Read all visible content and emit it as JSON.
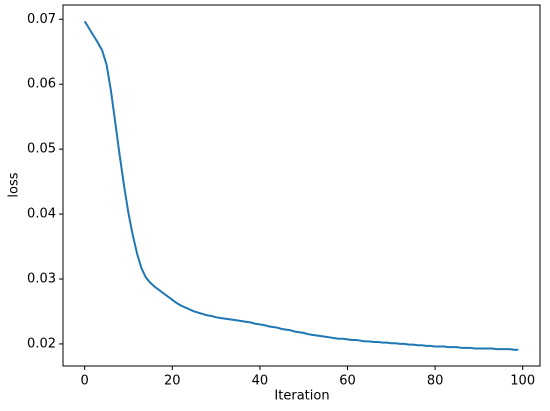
{
  "chart_data": {
    "type": "line",
    "x_label": "Iteration",
    "y_label": "loss",
    "x": [
      0,
      1,
      2,
      3,
      4,
      5,
      6,
      7,
      8,
      9,
      10,
      11,
      12,
      13,
      14,
      15,
      16,
      17,
      18,
      19,
      20,
      21,
      22,
      23,
      24,
      25,
      26,
      27,
      28,
      29,
      30,
      31,
      32,
      33,
      34,
      35,
      36,
      37,
      38,
      39,
      40,
      41,
      42,
      43,
      44,
      45,
      46,
      47,
      48,
      49,
      50,
      51,
      52,
      53,
      54,
      55,
      56,
      57,
      58,
      59,
      60,
      61,
      62,
      63,
      64,
      65,
      66,
      67,
      68,
      69,
      70,
      71,
      72,
      73,
      74,
      75,
      76,
      77,
      78,
      79,
      80,
      81,
      82,
      83,
      84,
      85,
      86,
      87,
      88,
      89,
      90,
      91,
      92,
      93,
      94,
      95,
      96,
      97,
      98,
      99
    ],
    "series": [
      {
        "color": "#1f77b4",
        "values": [
          0.0697,
          0.0686,
          0.0675,
          0.0664,
          0.0652,
          0.063,
          0.059,
          0.054,
          0.049,
          0.0443,
          0.0401,
          0.0367,
          0.0338,
          0.0316,
          0.0302,
          0.0294,
          0.0288,
          0.0283,
          0.0278,
          0.0273,
          0.0268,
          0.0263,
          0.0259,
          0.0256,
          0.0253,
          0.025,
          0.0248,
          0.0246,
          0.0244,
          0.0243,
          0.0241,
          0.024,
          0.0239,
          0.0238,
          0.0237,
          0.0236,
          0.0235,
          0.0234,
          0.0233,
          0.0231,
          0.023,
          0.0229,
          0.0227,
          0.0226,
          0.0225,
          0.0223,
          0.0222,
          0.0221,
          0.0219,
          0.0218,
          0.0217,
          0.0215,
          0.0214,
          0.0213,
          0.0212,
          0.0211,
          0.021,
          0.0209,
          0.0208,
          0.0208,
          0.0207,
          0.0206,
          0.0206,
          0.0205,
          0.0204,
          0.0204,
          0.0203,
          0.0203,
          0.0202,
          0.0202,
          0.0201,
          0.0201,
          0.02,
          0.02,
          0.0199,
          0.0199,
          0.0198,
          0.0198,
          0.0197,
          0.0197,
          0.0196,
          0.0196,
          0.0196,
          0.0195,
          0.0195,
          0.0195,
          0.0194,
          0.0194,
          0.0194,
          0.0193,
          0.0193,
          0.0193,
          0.0193,
          0.0193,
          0.0192,
          0.0192,
          0.0192,
          0.0192,
          0.0191,
          0.0191
        ]
      }
    ],
    "xlim": [
      -4.95,
      103.95
    ],
    "ylim": [
      0.0166,
      0.0722
    ],
    "xticks": [
      0,
      20,
      40,
      60,
      80,
      100
    ],
    "yticks": [
      0.02,
      0.03,
      0.04,
      0.05,
      0.06,
      0.07
    ]
  }
}
